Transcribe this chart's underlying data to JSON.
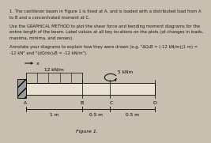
{
  "title_lines": [
    "1. The cantilever beam in Figure 1 is fixed at A, and is loaded with a distributed load from A",
    "to B and a concentrated moment at C."
  ],
  "body_lines": [
    "Use the GRAPHICAL METHOD to plot the shear force and bending moment diagrams for the",
    "entire length of the beam. Label values at all key locations on the plots (at changes in loads,",
    "maxima, minima, and zeroes)."
  ],
  "annotate_lines": [
    "Annotate your diagrams to explain how they were drawn (e.g. \"ΔQₐB = (-12 kN/m)(1 m) =",
    "-12 kN\" and \"(dQ/dx)ₐB = -12 kN/m\")."
  ],
  "beam_label_A": "A",
  "beam_label_B": "B",
  "beam_label_C": "C",
  "beam_label_D": "D",
  "dist_load_label": "12 kN/m",
  "moment_label": "5 kNm",
  "dim_AB": "1 m",
  "dim_BC": "0.5 m",
  "dim_CD": "0.5 m",
  "figure_label": "Figure 1.",
  "x_arrow_label": "x",
  "bg_color": "#c8bfb0",
  "text_color": "#1a1a1a",
  "beam_color": "#000000",
  "hatch_facecolor": "#9a9a9a"
}
